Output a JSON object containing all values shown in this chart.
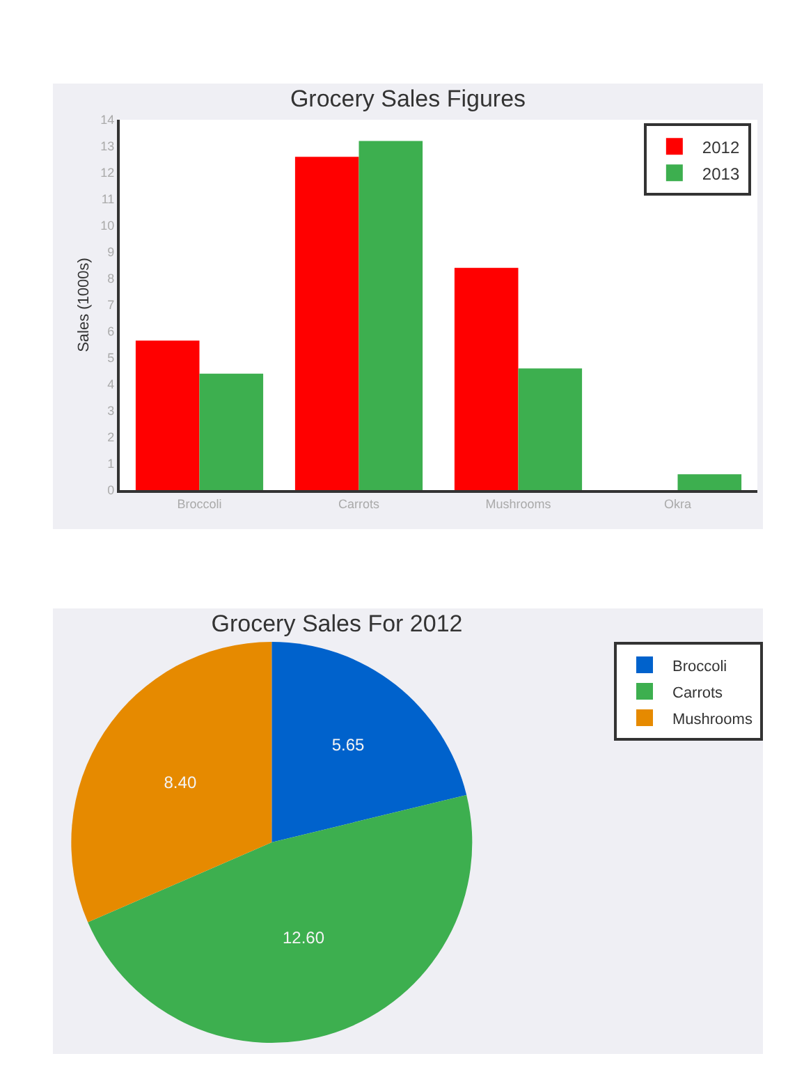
{
  "chart_data": [
    {
      "type": "bar",
      "title": "Grocery Sales Figures",
      "ylabel": "Sales (1000s)",
      "categories": [
        "Broccoli",
        "Carrots",
        "Mushrooms",
        "Okra"
      ],
      "series": [
        {
          "name": "2012",
          "color": "#ff0000",
          "values": [
            5.65,
            12.6,
            8.4,
            null
          ]
        },
        {
          "name": "2013",
          "color": "#3daf4f",
          "values": [
            4.4,
            13.2,
            4.6,
            0.6
          ]
        }
      ],
      "ylim": [
        0,
        14
      ],
      "yticks": [
        0,
        1,
        2,
        3,
        4,
        5,
        6,
        7,
        8,
        9,
        10,
        11,
        12,
        13,
        14
      ],
      "grid": false,
      "legend": "top right"
    },
    {
      "type": "pie",
      "title": "Grocery Sales For 2012",
      "categories": [
        "Broccoli",
        "Carrots",
        "Mushrooms"
      ],
      "values": [
        5.65,
        12.6,
        8.4
      ],
      "value_labels": [
        "5.65",
        "12.60",
        "8.40"
      ],
      "colors": [
        "#0062cc",
        "#3daf4f",
        "#e68a00"
      ],
      "legend": "right"
    }
  ]
}
